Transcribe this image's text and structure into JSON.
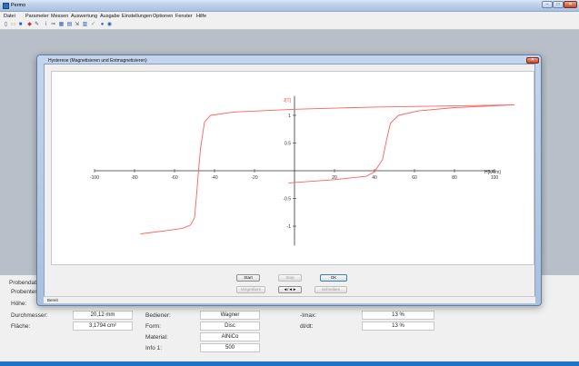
{
  "window": {
    "title": "Permo"
  },
  "menu": [
    "Datei",
    "Parameter",
    "Messen",
    "Auswertung",
    "Ausgabe",
    "Einstellungen",
    "Optionen",
    "Fenster",
    "Hilfe"
  ],
  "toolbar_icons": [
    "new-file-icon",
    "open-file-icon",
    "save-icon",
    "measure-icon",
    "edit-icon",
    "info-icon",
    "arrow-icon",
    "table-icon",
    "grid-icon",
    "export-icon",
    "chart-icon",
    "settings-icon",
    "help-icon",
    "about-icon"
  ],
  "dialog": {
    "title": "Hysterese (Magnetisieren und Entmagnetisieren)",
    "buttons": {
      "start": "Start",
      "stop": "Stop",
      "ok": "OK",
      "vergroessern": "Vergrößern",
      "navigate": "◄/◄►",
      "schreiben": "Schreiben"
    },
    "status": "Bereit"
  },
  "chart_data": {
    "type": "line",
    "xlabel": "H[kA/m]",
    "ylabel": "J[T]",
    "xlim": [
      -100,
      100
    ],
    "ylim": [
      -1.35,
      1.35
    ],
    "x_ticks": [
      -100,
      -80,
      -60,
      -40,
      -20,
      20,
      40,
      60,
      80,
      100
    ],
    "y_ticks": [
      1,
      0.5,
      -0.5,
      -1
    ],
    "y_tick_labels": [
      "1",
      "0.5",
      "-0.5",
      "-1"
    ],
    "color": "#ff6060",
    "series": [
      {
        "name": "",
        "points": [
          [
            -77,
            -1.14
          ],
          [
            -64,
            -1.08
          ],
          [
            -56,
            -1.04
          ],
          [
            -52,
            -0.98
          ],
          [
            -50,
            -0.85
          ],
          [
            -49,
            -0.45
          ],
          [
            -48,
            0.0
          ],
          [
            -47,
            0.4
          ],
          [
            -45,
            0.88
          ],
          [
            -42,
            1.0
          ],
          [
            -30,
            1.06
          ],
          [
            0,
            1.11
          ],
          [
            40,
            1.15
          ],
          [
            80,
            1.17
          ],
          [
            110,
            1.19
          ]
        ]
      },
      {
        "name": "",
        "points": [
          [
            -3,
            -0.22
          ],
          [
            20,
            -0.16
          ],
          [
            36,
            -0.1
          ],
          [
            40,
            -0.02
          ],
          [
            44,
            0.2
          ],
          [
            46,
            0.55
          ],
          [
            48,
            0.86
          ],
          [
            52,
            1.0
          ],
          [
            62,
            1.08
          ],
          [
            80,
            1.14
          ],
          [
            110,
            1.19
          ]
        ]
      }
    ]
  },
  "panel": {
    "probendaten": "Probendaten:",
    "probentemp": "Probentemp",
    "hoehe": "Höhe:",
    "durchmesser_label": "Durchmesser:",
    "durchmesser_value": "20,12 mm",
    "flaeche_label": "Fläche:",
    "flaeche_value": "3,1794 cm²",
    "bediener_label": "Bediener:",
    "bediener_value": "Wagner",
    "form_label": "Form:",
    "form_value": "Disc",
    "material_label": "Material:",
    "material_value": "AlNiCo",
    "info1_label": "Info 1:",
    "info1_value": "500",
    "imax_label": "-Imax:",
    "imax_value": "13 %",
    "didt_label": "dI/dt:",
    "didt_value": "13 %"
  }
}
